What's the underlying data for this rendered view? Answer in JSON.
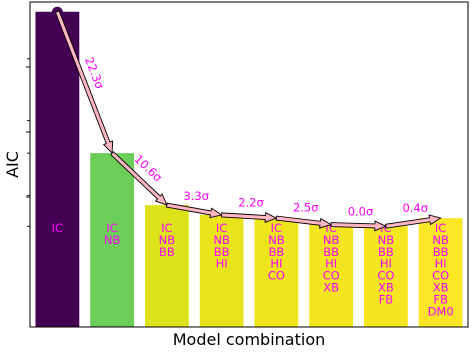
{
  "chart_data": {
    "type": "bar",
    "xlabel": "Model combination",
    "ylabel": "AIC",
    "ylim": [
      0,
      100
    ],
    "grid": false,
    "categories": [
      [
        "IC"
      ],
      [
        "IC",
        "NB"
      ],
      [
        "IC",
        "NB",
        "BB"
      ],
      [
        "IC",
        "NB",
        "BB",
        "HI"
      ],
      [
        "IC",
        "NB",
        "BB",
        "HI",
        "CO"
      ],
      [
        "IC",
        "NB",
        "BB",
        "HI",
        "CO",
        "XB"
      ],
      [
        "IC",
        "NB",
        "BB",
        "HI",
        "CO",
        "XB",
        "FB"
      ],
      [
        "IC",
        "NB",
        "BB",
        "HI",
        "CO",
        "XB",
        "FB",
        "DM0"
      ]
    ],
    "values": [
      97,
      53.5,
      37.5,
      34.5,
      33.5,
      31.5,
      31,
      33.5
    ],
    "bar_colors": [
      "#440154",
      "#6ccd59",
      "#dde318",
      "#e8e419",
      "#efe51c",
      "#f3e51e",
      "#f6e620",
      "#fde725"
    ],
    "start_marker_color": "#440154",
    "arrow_color": "#ffb6c1",
    "label_color": "#ff00ff",
    "significance_labels": [
      "22.3σ",
      "10.6σ",
      "3.3σ",
      "2.2σ",
      "2.5σ",
      "0.0σ",
      "0.4σ"
    ]
  }
}
